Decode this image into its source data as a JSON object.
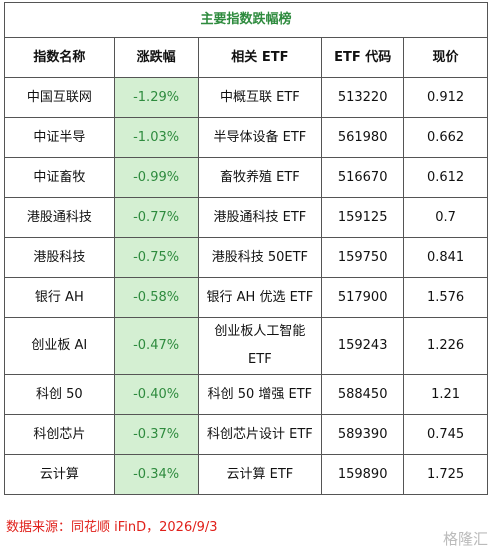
{
  "table": {
    "title": "主要指数跌幅榜",
    "header": [
      "指数名称",
      "涨跌幅",
      "相关 ETF",
      "ETF 代码",
      "现价"
    ],
    "rows": [
      [
        "中国互联网",
        "-1.29%",
        "中概互联 ETF",
        "513220",
        "0.912"
      ],
      [
        "中证半导",
        "-1.03%",
        "半导体设备 ETF",
        "561980",
        "0.662"
      ],
      [
        "中证畜牧",
        "-0.99%",
        "畜牧养殖 ETF",
        "516670",
        "0.612"
      ],
      [
        "港股通科技",
        "-0.77%",
        "港股通科技 ETF",
        "159125",
        "0.7"
      ],
      [
        "港股科技",
        "-0.75%",
        "港股科技 50ETF",
        "159750",
        "0.841"
      ],
      [
        "银行 AH",
        "-0.58%",
        "银行 AH 优选 ETF",
        "517900",
        "1.576"
      ],
      [
        "创业板 AI",
        "-0.47%",
        "创业板人工智能 ETF",
        "159243",
        "1.226"
      ],
      [
        "科创 50",
        "-0.40%",
        "科创 50 增强 ETF",
        "588450",
        "1.21"
      ],
      [
        "科创芯片",
        "-0.37%",
        "科创芯片设计 ETF",
        "589390",
        "0.745"
      ],
      [
        "云计算",
        "-0.34%",
        "云计算 ETF",
        "159890",
        "1.725"
      ]
    ]
  },
  "source": "数据来源：同花顺 iFinD，2026/9/3",
  "watermark": "格隆汇"
}
